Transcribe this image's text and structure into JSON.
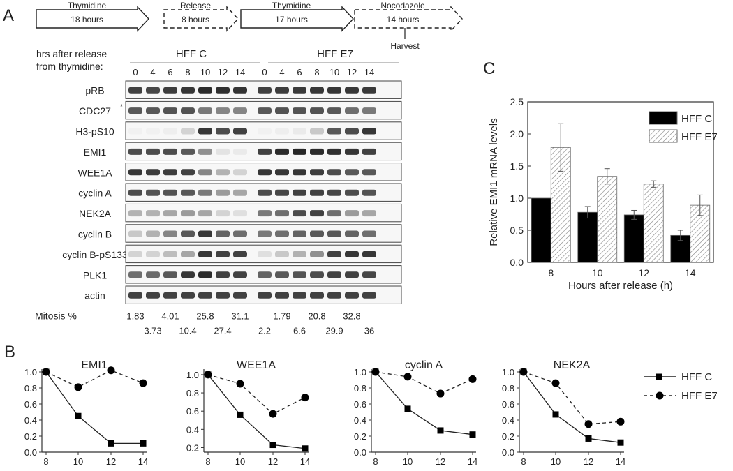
{
  "panels": {
    "a": "A",
    "b": "B",
    "c": "C"
  },
  "timeline": [
    {
      "label": "Thymidine",
      "duration": "18 hours",
      "style": "solid"
    },
    {
      "label": "Release",
      "duration": "8 hours",
      "style": "dashed"
    },
    {
      "label": "Thymidine",
      "duration": "17 hours",
      "style": "solid"
    },
    {
      "label": "Nocodazole",
      "duration": "14 hours",
      "style": "dashed"
    }
  ],
  "harvest_label": "Harvest",
  "blot": {
    "header_line1": "hrs after release",
    "header_line2": "from thymidine:",
    "groups": [
      "HFF  C",
      "HFF  E7"
    ],
    "timepoints": [
      "0",
      "4",
      "6",
      "8",
      "10",
      "12",
      "14"
    ],
    "marker_star": "*",
    "rows": [
      {
        "label": "pRB",
        "intensity": [
          0.8,
          0.78,
          0.82,
          0.85,
          0.9,
          0.88,
          0.86,
          0.8,
          0.82,
          0.83,
          0.84,
          0.85,
          0.84,
          0.83
        ]
      },
      {
        "label": "CDC27",
        "intensity": [
          0.7,
          0.7,
          0.72,
          0.72,
          0.55,
          0.5,
          0.5,
          0.7,
          0.72,
          0.72,
          0.72,
          0.7,
          0.6,
          0.55
        ]
      },
      {
        "label": "H3-pS10",
        "intensity": [
          0.02,
          0.02,
          0.03,
          0.15,
          0.85,
          0.75,
          0.8,
          0.02,
          0.03,
          0.05,
          0.2,
          0.7,
          0.75,
          0.85
        ]
      },
      {
        "label": "EMI1",
        "intensity": [
          0.75,
          0.75,
          0.75,
          0.7,
          0.45,
          0.08,
          0.05,
          0.8,
          0.9,
          0.92,
          0.9,
          0.88,
          0.85,
          0.8
        ]
      },
      {
        "label": "WEE1A",
        "intensity": [
          0.85,
          0.82,
          0.82,
          0.8,
          0.5,
          0.3,
          0.15,
          0.85,
          0.85,
          0.85,
          0.82,
          0.75,
          0.7,
          0.7
        ]
      },
      {
        "label": "cyclin A",
        "intensity": [
          0.75,
          0.72,
          0.72,
          0.7,
          0.55,
          0.4,
          0.35,
          0.75,
          0.78,
          0.8,
          0.8,
          0.78,
          0.75,
          0.72
        ]
      },
      {
        "label": "NEK2A",
        "intensity": [
          0.3,
          0.3,
          0.35,
          0.4,
          0.35,
          0.15,
          0.1,
          0.55,
          0.6,
          0.75,
          0.8,
          0.6,
          0.4,
          0.35
        ]
      },
      {
        "label": "cyclin B",
        "intensity": [
          0.2,
          0.3,
          0.5,
          0.7,
          0.85,
          0.65,
          0.6,
          0.55,
          0.6,
          0.65,
          0.7,
          0.7,
          0.65,
          0.6
        ]
      },
      {
        "label": "cyclin B-pS133",
        "intensity": [
          0.15,
          0.15,
          0.25,
          0.35,
          0.85,
          0.8,
          0.8,
          0.1,
          0.2,
          0.3,
          0.45,
          0.8,
          0.85,
          0.85
        ]
      },
      {
        "label": "PLK1",
        "intensity": [
          0.6,
          0.62,
          0.7,
          0.85,
          0.9,
          0.8,
          0.8,
          0.65,
          0.7,
          0.72,
          0.75,
          0.8,
          0.8,
          0.78
        ]
      },
      {
        "label": "actin",
        "intensity": [
          0.8,
          0.8,
          0.8,
          0.8,
          0.8,
          0.8,
          0.8,
          0.8,
          0.8,
          0.8,
          0.8,
          0.8,
          0.8,
          0.8
        ]
      }
    ],
    "mitosis_label": "Mitosis %",
    "mitosis": [
      "1.83",
      "3.73",
      "4.01",
      "10.4",
      "25.8",
      "27.4",
      "31.1",
      "2.2",
      "1.79",
      "6.6",
      "20.8",
      "29.9",
      "32.8",
      "36"
    ]
  },
  "chart_data": [
    {
      "type": "bar",
      "panel": "C",
      "ylabel": "Relative EMI1 mRNA levels",
      "xlabel": "Hours after release (h)",
      "categories": [
        "8",
        "10",
        "12",
        "14"
      ],
      "ylim": [
        0.0,
        2.5
      ],
      "yticks": [
        "0.0",
        "0.5",
        "1.0",
        "1.5",
        "2.0",
        "2.5"
      ],
      "legend_position": "top-right",
      "series": [
        {
          "name": "HFF C",
          "values": [
            1.0,
            0.78,
            0.74,
            0.42
          ],
          "errors": [
            0,
            0.09,
            0.07,
            0.08
          ],
          "fill": "solid"
        },
        {
          "name": "HFF E7",
          "values": [
            1.79,
            1.34,
            1.22,
            0.89
          ],
          "errors": [
            0.37,
            0.12,
            0.05,
            0.16
          ],
          "fill": "hatched"
        }
      ]
    },
    {
      "type": "line",
      "panel": "B",
      "title": "EMI1",
      "x": [
        8,
        10,
        12,
        14
      ],
      "ylim": [
        0.0,
        1.0
      ],
      "yticks": [
        "0.0",
        "0.2",
        "0.4",
        "0.6",
        "0.8",
        "1.0"
      ],
      "series": [
        {
          "name": "HFF C",
          "values": [
            1.0,
            0.45,
            0.11,
            0.11
          ]
        },
        {
          "name": "HFF E7",
          "values": [
            1.0,
            0.81,
            1.02,
            0.86
          ]
        }
      ]
    },
    {
      "type": "line",
      "panel": "B",
      "title": "WEE1A",
      "x": [
        8,
        10,
        12,
        14
      ],
      "ylim": [
        0.15,
        1.03
      ],
      "yticks": [
        "0.2",
        "0.4",
        "0.6",
        "0.8",
        "1.0"
      ],
      "series": [
        {
          "name": "HFF C",
          "values": [
            1.0,
            0.56,
            0.23,
            0.19
          ]
        },
        {
          "name": "HFF E7",
          "values": [
            1.0,
            0.9,
            0.57,
            0.75
          ]
        }
      ]
    },
    {
      "type": "line",
      "panel": "B",
      "title": "cyclin A",
      "x": [
        8,
        10,
        12,
        14
      ],
      "ylim": [
        0.0,
        1.0
      ],
      "yticks": [
        "0.0",
        "0.2",
        "0.4",
        "0.6",
        "0.8",
        "1.0"
      ],
      "series": [
        {
          "name": "HFF C",
          "values": [
            1.0,
            0.54,
            0.27,
            0.22
          ]
        },
        {
          "name": "HFF E7",
          "values": [
            1.0,
            0.94,
            0.73,
            0.91
          ]
        }
      ]
    },
    {
      "type": "line",
      "panel": "B",
      "title": "NEK2A",
      "x": [
        8,
        10,
        12,
        14
      ],
      "ylim": [
        0.0,
        1.0
      ],
      "yticks": [
        "0.0",
        "0.2",
        "0.4",
        "0.6",
        "0.8",
        "1.0"
      ],
      "series": [
        {
          "name": "HFF C",
          "values": [
            1.0,
            0.47,
            0.17,
            0.12
          ]
        },
        {
          "name": "HFF E7",
          "values": [
            1.0,
            0.86,
            0.35,
            0.38
          ]
        }
      ]
    }
  ],
  "line_legend": [
    {
      "name": "HFF C",
      "style": "solid",
      "marker": "square"
    },
    {
      "name": "HFF E7",
      "style": "dashed",
      "marker": "circle"
    }
  ]
}
